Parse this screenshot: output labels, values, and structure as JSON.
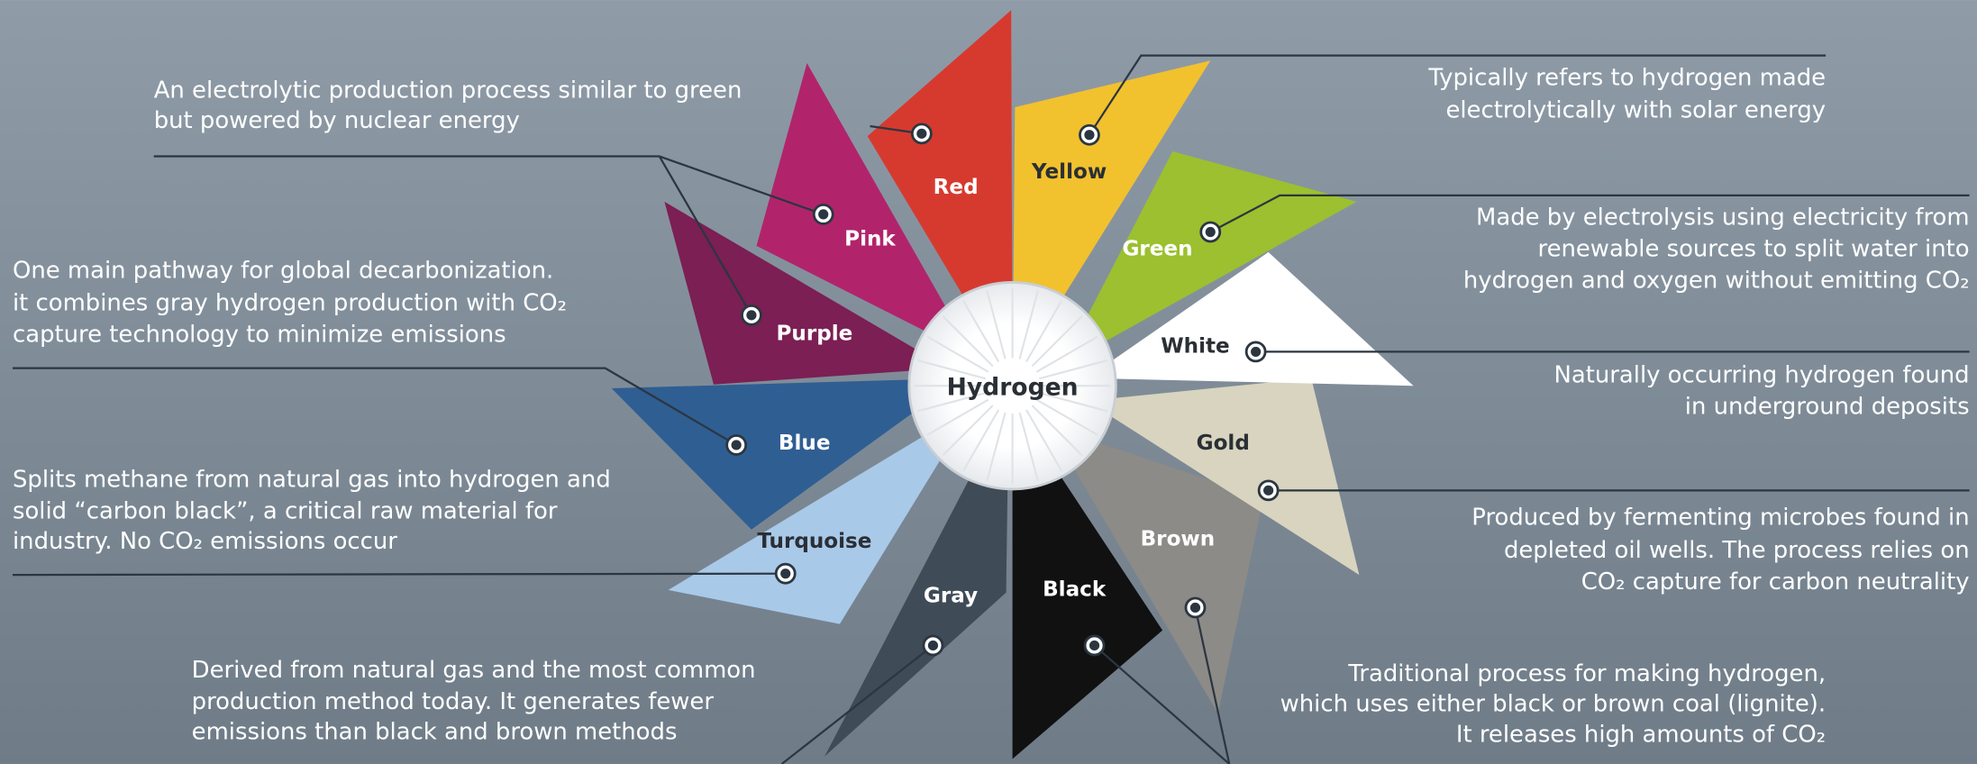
{
  "center": {
    "label": "Hydrogen"
  },
  "nodes": [
    {
      "label": "Red"
    },
    {
      "label": "Yellow"
    },
    {
      "label": "Pink"
    },
    {
      "label": "Green"
    },
    {
      "label": "Purple"
    },
    {
      "label": "White"
    },
    {
      "label": "Blue"
    },
    {
      "label": "Gold"
    },
    {
      "label": "Turquoise"
    },
    {
      "label": "Brown"
    },
    {
      "label": "Gray"
    },
    {
      "label": "Black"
    }
  ],
  "notes": [
    {
      "lines": [
        "An electrolytic production process similar to green",
        "but powered by nuclear energy"
      ]
    },
    {
      "lines": [
        "One main pathway for global decarbonization.",
        "it combines gray hydrogen production with CO₂",
        "capture technology to minimize emissions"
      ]
    },
    {
      "lines": [
        "Splits methane from natural gas into hydrogen and",
        "solid “carbon black”, a critical raw material for",
        "industry. No CO₂ emissions occur"
      ]
    },
    {
      "lines": [
        "Derived from natural gas and the most common",
        "production method today. It generates fewer",
        "emissions than black and brown methods"
      ]
    },
    {
      "lines": [
        "Typically refers to hydrogen made",
        "electrolytically with solar energy"
      ]
    },
    {
      "lines": [
        "Made by electrolysis using electricity from",
        "renewable sources to split water into",
        "hydrogen and oxygen without emitting CO₂"
      ]
    },
    {
      "lines": [
        "Naturally occurring hydrogen found",
        "in underground deposits"
      ]
    },
    {
      "lines": [
        "Produced by fermenting microbes found in",
        "depleted oil wells. The process relies on",
        "CO₂ capture for carbon neutrality"
      ]
    },
    {
      "lines": [
        "Traditional process for making hydrogen,",
        "which uses either black or brown coal (lignite).",
        "It releases high amounts of CO₂"
      ]
    }
  ]
}
